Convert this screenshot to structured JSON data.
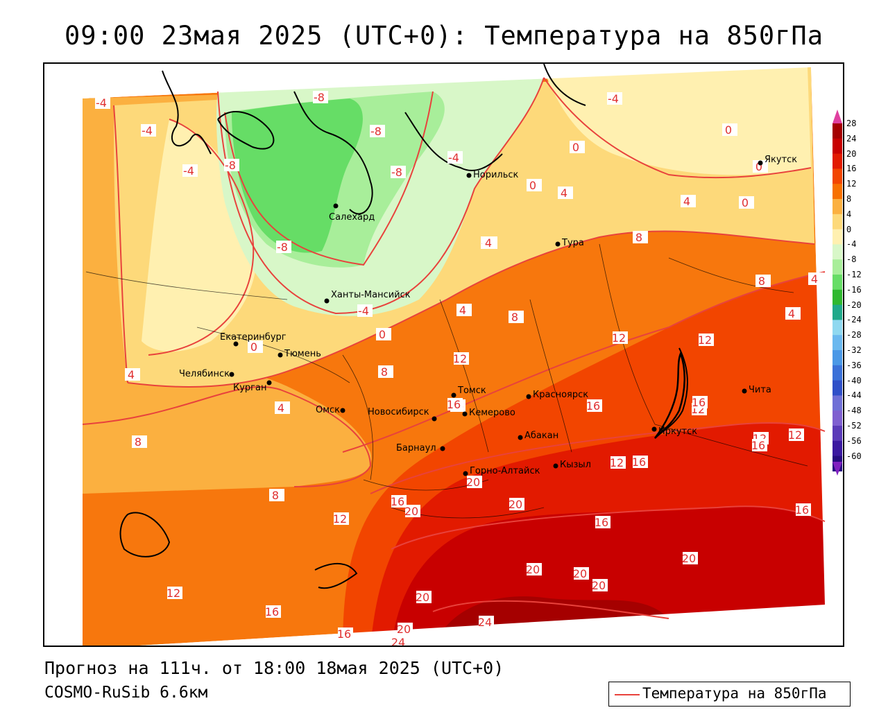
{
  "header": {
    "title": "09:00 23мая 2025 (UTC+0): Температура на 850гПа"
  },
  "footer": {
    "forecast": "Прогноз на 111ч. от 18:00 18мая 2025 (UTC+0)",
    "model": "COSMO-RuSib 6.6км"
  },
  "key": {
    "label": "Температура на 850гПа",
    "line_color": "#e8423c"
  },
  "colorbar": {
    "labels": [
      "28",
      "24",
      "20",
      "16",
      "12",
      "8",
      "4",
      "0",
      "-4",
      "-8",
      "-12",
      "-16",
      "-20",
      "-24",
      "-28",
      "-32",
      "-36",
      "-40",
      "-44",
      "-48",
      "-52",
      "-56",
      "-60"
    ],
    "colors": [
      "#a50000",
      "#c80000",
      "#e21a00",
      "#f24500",
      "#f77000",
      "#fbb040",
      "#fdd97a",
      "#fff0b0",
      "#d8f7c8",
      "#a8ee9a",
      "#66dd66",
      "#2fb82f",
      "#1fa98a",
      "#8fd8f0",
      "#6ab8ef",
      "#4a98e6",
      "#3a70d8",
      "#2f4fc8",
      "#6f6fd6",
      "#7f5fd0",
      "#5a3ab8",
      "#3a18a0",
      "#250c80"
    ],
    "top_arrow_color": "#e040a0",
    "bottom_arrow_color": "#8020c0"
  },
  "cities": [
    {
      "name": "Норильск"
    },
    {
      "name": "Якутск"
    },
    {
      "name": "Салехард"
    },
    {
      "name": "Тура"
    },
    {
      "name": "Ханты-Мансийск"
    },
    {
      "name": "Екатеринбург"
    },
    {
      "name": "Тюмень"
    },
    {
      "name": "Челябинск"
    },
    {
      "name": "Курган"
    },
    {
      "name": "Омск"
    },
    {
      "name": "Томск"
    },
    {
      "name": "Красноярск"
    },
    {
      "name": "Новосибирск"
    },
    {
      "name": "Кемерово"
    },
    {
      "name": "Абакан"
    },
    {
      "name": "Иркутск"
    },
    {
      "name": "Чита"
    },
    {
      "name": "Барнаул"
    },
    {
      "name": "Горно-Алтайск"
    },
    {
      "name": "Кызыл"
    }
  ],
  "contour_labels": [
    "-8",
    "-8",
    "-8",
    "-8",
    "-8",
    "-4",
    "-4",
    "-4",
    "-4",
    "-4",
    "-4",
    "-4",
    "0",
    "0",
    "0",
    "0",
    "0",
    "0",
    "0",
    "4",
    "4",
    "4",
    "4",
    "4",
    "4",
    "4",
    "4",
    "8",
    "8",
    "8",
    "8",
    "8",
    "8",
    "12",
    "12",
    "12",
    "12",
    "12",
    "12",
    "12",
    "12",
    "12",
    "16",
    "16",
    "16",
    "16",
    "16",
    "16",
    "16",
    "16",
    "16",
    "16",
    "16",
    "20",
    "20",
    "20",
    "20",
    "20",
    "20",
    "20",
    "20",
    "20",
    "24",
    "24"
  ]
}
